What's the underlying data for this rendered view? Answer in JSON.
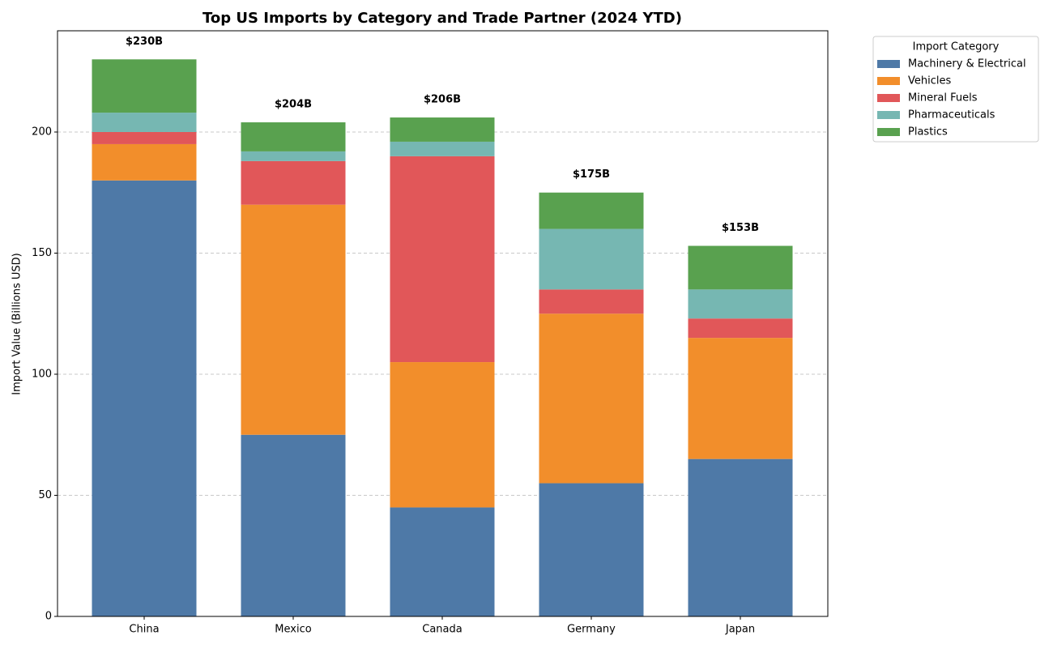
{
  "chart_data": {
    "type": "stacked-bar",
    "title": "Top US Imports by Category and Trade Partner (2024 YTD)",
    "y_label": "Import Value (Billions USD)",
    "categories": [
      "China",
      "Mexico",
      "Canada",
      "Germany",
      "Japan"
    ],
    "series": [
      {
        "name": "Machinery & Electrical",
        "color": "#4e79a7",
        "values": [
          180,
          75,
          45,
          55,
          65
        ]
      },
      {
        "name": "Vehicles",
        "color": "#f28e2b",
        "values": [
          15,
          95,
          60,
          70,
          50
        ]
      },
      {
        "name": "Mineral Fuels",
        "color": "#e15759",
        "values": [
          5,
          18,
          85,
          10,
          8
        ]
      },
      {
        "name": "Pharmaceuticals",
        "color": "#76b7b2",
        "values": [
          8,
          4,
          6,
          25,
          12
        ]
      },
      {
        "name": "Plastics",
        "color": "#59a14f",
        "values": [
          22,
          12,
          10,
          15,
          18
        ]
      }
    ],
    "totals": {
      "values": [
        230,
        204,
        206,
        175,
        153
      ],
      "value_labels": [
        "$230B",
        "$204B",
        "$206B",
        "$175B",
        "$153B"
      ]
    },
    "ylim": [
      0,
      241.8
    ],
    "yticks": [
      0,
      50,
      100,
      150,
      200
    ],
    "grid": true,
    "legend": {
      "title": "Import Category",
      "position": "outside-upper-right"
    }
  }
}
